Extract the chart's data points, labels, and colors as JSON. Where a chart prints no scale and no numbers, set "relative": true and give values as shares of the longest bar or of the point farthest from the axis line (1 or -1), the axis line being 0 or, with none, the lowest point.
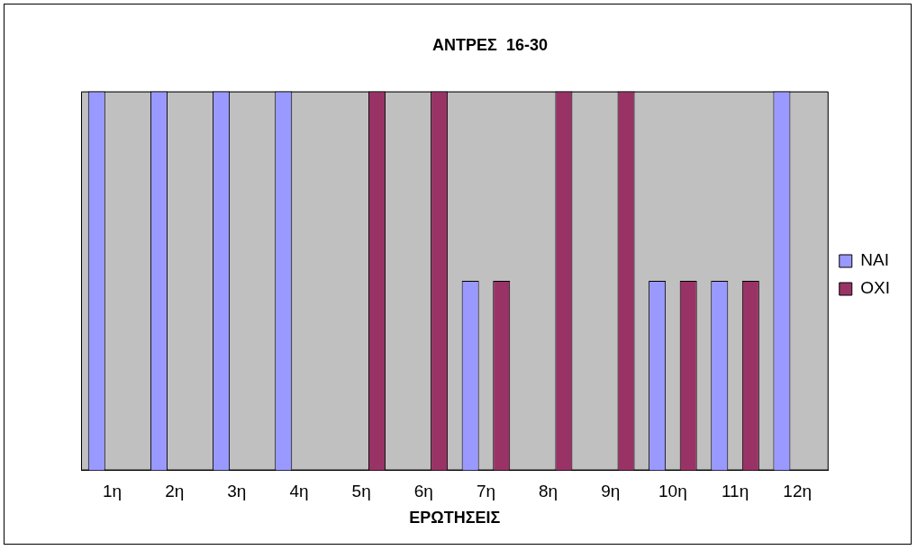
{
  "chart_data": {
    "type": "bar",
    "title": "ΑΝΤΡΕΣ  16-30",
    "xlabel": "ΕΡΩΤΗΣΕΙΣ",
    "relative": true,
    "legend": "right",
    "categories": [
      "1η",
      "2η",
      "3η",
      "4η",
      "5η",
      "6η",
      "7η",
      "8η",
      "9η",
      "10η",
      "11η",
      "12η"
    ],
    "series": [
      {
        "name": "ΝΑΙ",
        "color": "#9999ff",
        "values": [
          1,
          1,
          1,
          1,
          0,
          0,
          0.5,
          0,
          0,
          0.5,
          0.5,
          1
        ]
      },
      {
        "name": "ΟΧΙ",
        "color": "#993366",
        "values": [
          0,
          0,
          0,
          0,
          1,
          1,
          0.5,
          1,
          1,
          0.5,
          0.5,
          0
        ]
      }
    ]
  }
}
